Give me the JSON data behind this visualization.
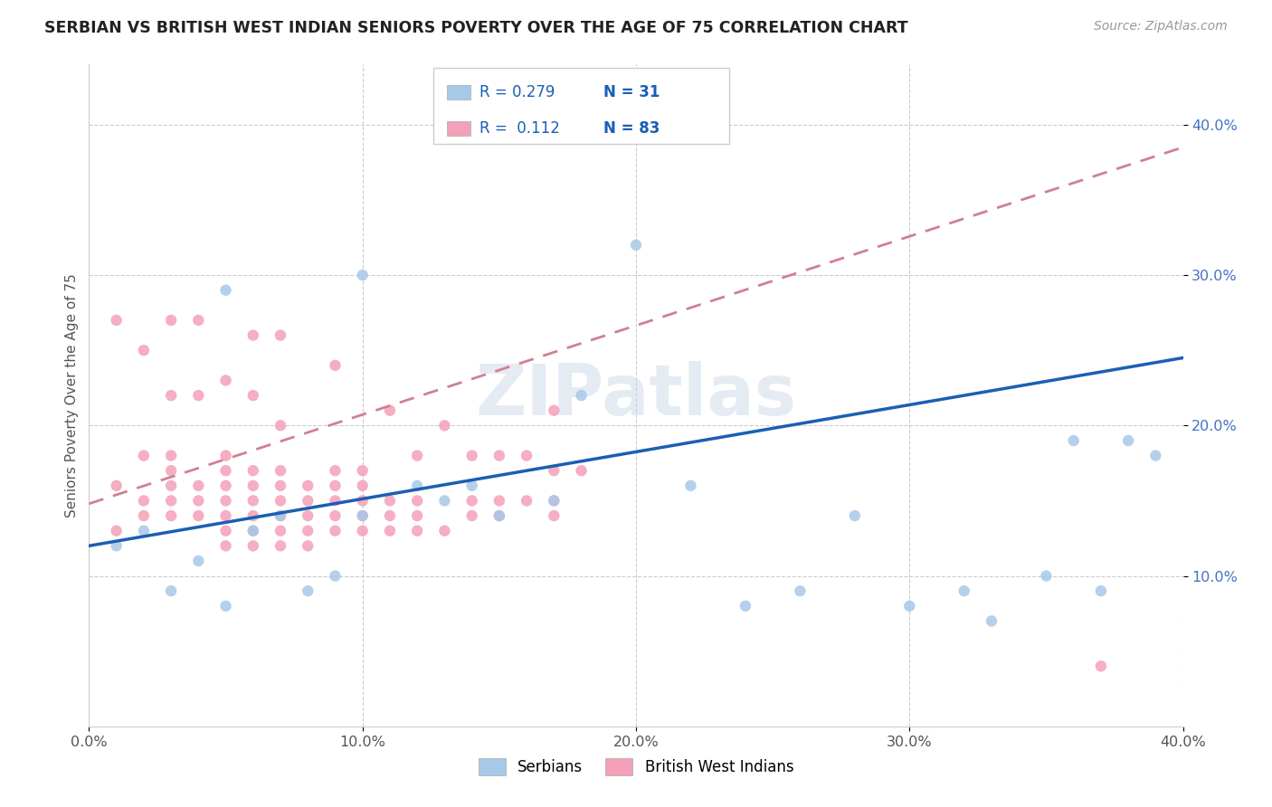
{
  "title": "SERBIAN VS BRITISH WEST INDIAN SENIORS POVERTY OVER THE AGE OF 75 CORRELATION CHART",
  "source": "Source: ZipAtlas.com",
  "ylabel": "Seniors Poverty Over the Age of 75",
  "xlim": [
    0.0,
    0.4
  ],
  "ylim": [
    0.0,
    0.44
  ],
  "xticks": [
    0.0,
    0.1,
    0.2,
    0.3,
    0.4
  ],
  "yticks": [
    0.1,
    0.2,
    0.3,
    0.4
  ],
  "xticklabels": [
    "0.0%",
    "10.0%",
    "20.0%",
    "30.0%",
    "40.0%"
  ],
  "yticklabels": [
    "10.0%",
    "20.0%",
    "30.0%",
    "40.0%"
  ],
  "serbian_color": "#a8c8e8",
  "bwi_color": "#f4a0b8",
  "serbian_line_color": "#1a5fb4",
  "bwi_line_color": "#d08090",
  "R_serbian": 0.279,
  "N_serbian": 31,
  "R_bwi": 0.112,
  "N_bwi": 83,
  "serbian_line_x0": 0.0,
  "serbian_line_y0": 0.12,
  "serbian_line_x1": 0.4,
  "serbian_line_y1": 0.245,
  "bwi_line_x0": 0.0,
  "bwi_line_y0": 0.148,
  "bwi_line_x1": 0.4,
  "bwi_line_y1": 0.385,
  "serbian_x": [
    0.01,
    0.02,
    0.03,
    0.04,
    0.05,
    0.05,
    0.06,
    0.07,
    0.08,
    0.09,
    0.1,
    0.1,
    0.12,
    0.13,
    0.14,
    0.15,
    0.17,
    0.18,
    0.2,
    0.22,
    0.24,
    0.26,
    0.28,
    0.3,
    0.32,
    0.33,
    0.35,
    0.36,
    0.37,
    0.38,
    0.39
  ],
  "serbian_y": [
    0.12,
    0.13,
    0.09,
    0.11,
    0.08,
    0.29,
    0.13,
    0.14,
    0.09,
    0.1,
    0.14,
    0.3,
    0.16,
    0.15,
    0.16,
    0.14,
    0.15,
    0.22,
    0.32,
    0.16,
    0.08,
    0.09,
    0.14,
    0.08,
    0.09,
    0.07,
    0.1,
    0.19,
    0.09,
    0.19,
    0.18
  ],
  "bwi_x": [
    0.01,
    0.01,
    0.01,
    0.02,
    0.02,
    0.02,
    0.02,
    0.03,
    0.03,
    0.03,
    0.03,
    0.03,
    0.03,
    0.03,
    0.04,
    0.04,
    0.04,
    0.04,
    0.04,
    0.05,
    0.05,
    0.05,
    0.05,
    0.05,
    0.05,
    0.05,
    0.05,
    0.06,
    0.06,
    0.06,
    0.06,
    0.06,
    0.06,
    0.06,
    0.06,
    0.07,
    0.07,
    0.07,
    0.07,
    0.07,
    0.07,
    0.07,
    0.07,
    0.08,
    0.08,
    0.08,
    0.08,
    0.08,
    0.09,
    0.09,
    0.09,
    0.09,
    0.09,
    0.09,
    0.1,
    0.1,
    0.1,
    0.1,
    0.1,
    0.11,
    0.11,
    0.11,
    0.11,
    0.12,
    0.12,
    0.12,
    0.12,
    0.13,
    0.13,
    0.14,
    0.14,
    0.14,
    0.15,
    0.15,
    0.15,
    0.16,
    0.16,
    0.17,
    0.17,
    0.17,
    0.17,
    0.18,
    0.37
  ],
  "bwi_y": [
    0.13,
    0.16,
    0.27,
    0.14,
    0.15,
    0.18,
    0.25,
    0.14,
    0.15,
    0.16,
    0.17,
    0.18,
    0.22,
    0.27,
    0.14,
    0.15,
    0.16,
    0.22,
    0.27,
    0.12,
    0.13,
    0.14,
    0.15,
    0.16,
    0.17,
    0.18,
    0.23,
    0.12,
    0.13,
    0.14,
    0.15,
    0.16,
    0.17,
    0.22,
    0.26,
    0.12,
    0.13,
    0.14,
    0.15,
    0.16,
    0.17,
    0.2,
    0.26,
    0.12,
    0.13,
    0.14,
    0.15,
    0.16,
    0.13,
    0.14,
    0.15,
    0.16,
    0.17,
    0.24,
    0.13,
    0.14,
    0.15,
    0.16,
    0.17,
    0.13,
    0.14,
    0.15,
    0.21,
    0.13,
    0.14,
    0.15,
    0.18,
    0.13,
    0.2,
    0.14,
    0.15,
    0.18,
    0.14,
    0.15,
    0.18,
    0.15,
    0.18,
    0.14,
    0.15,
    0.17,
    0.21,
    0.17,
    0.04
  ]
}
